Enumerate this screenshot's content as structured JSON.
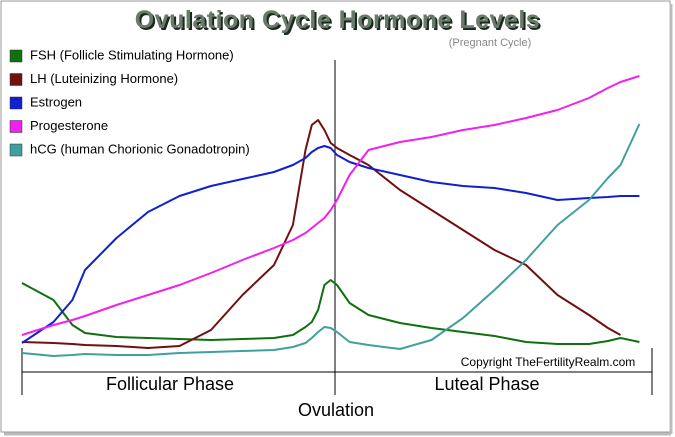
{
  "chart_data": {
    "type": "line",
    "title": "Ovulation Cycle Hormone Levels",
    "subtitle": "(Pregnant Cycle)",
    "annotations": [
      "Copyright TheFertilityRealm.com",
      "Follicular Phase",
      "Luteal Phase",
      "Ovulation"
    ],
    "x": [
      0,
      5,
      8,
      10,
      15,
      20,
      25,
      30,
      35,
      40,
      43,
      45,
      46,
      47,
      48,
      49,
      50,
      52,
      55,
      60,
      65,
      70,
      75,
      80,
      85,
      90,
      93,
      95,
      98
    ],
    "xlim": [
      0,
      100
    ],
    "ylim": [
      0,
      332
    ],
    "legend": "top-left",
    "series": [
      {
        "name": "FSH (Follicle Stimulating Hormone)",
        "color": "#107010",
        "values": [
          89,
          72,
          47,
          39,
          35,
          34,
          33,
          32,
          33,
          34,
          37,
          45,
          50,
          62,
          87,
          92,
          87,
          69,
          57,
          49,
          44,
          40,
          36,
          30,
          28,
          28,
          31,
          34,
          30
        ]
      },
      {
        "name": "LH (Luteinizing Hormone)",
        "color": "#701010",
        "values": [
          30,
          29,
          28,
          27,
          26,
          24,
          26,
          42,
          77,
          107,
          147,
          222,
          247,
          252,
          242,
          229,
          224,
          217,
          207,
          182,
          162,
          142,
          122,
          107,
          77,
          57,
          44,
          37,
          null
        ]
      },
      {
        "name": "Estrogen",
        "color": "#1020d0",
        "values": [
          29,
          50,
          72,
          102,
          134,
          160,
          176,
          186,
          193,
          200,
          207,
          214,
          220,
          224,
          226,
          224,
          217,
          210,
          204,
          197,
          190,
          186,
          184,
          179,
          172,
          174,
          175,
          176,
          176
        ]
      },
      {
        "name": "Progesterone",
        "color": "#f020f0",
        "values": [
          37,
          47,
          52,
          56,
          67,
          77,
          87,
          99,
          112,
          124,
          132,
          139,
          144,
          149,
          154,
          162,
          172,
          197,
          222,
          230,
          235,
          242,
          247,
          254,
          262,
          274,
          284,
          290,
          296
        ]
      },
      {
        "name": "hCG (human Chorionic Gonadotropin)",
        "color": "#40a0a0",
        "values": [
          19,
          16,
          17,
          18,
          17,
          17,
          19,
          20,
          21,
          22,
          25,
          29,
          34,
          40,
          45,
          44,
          40,
          30,
          27,
          23,
          32,
          54,
          82,
          112,
          147,
          172,
          194,
          207,
          248
        ]
      }
    ]
  }
}
